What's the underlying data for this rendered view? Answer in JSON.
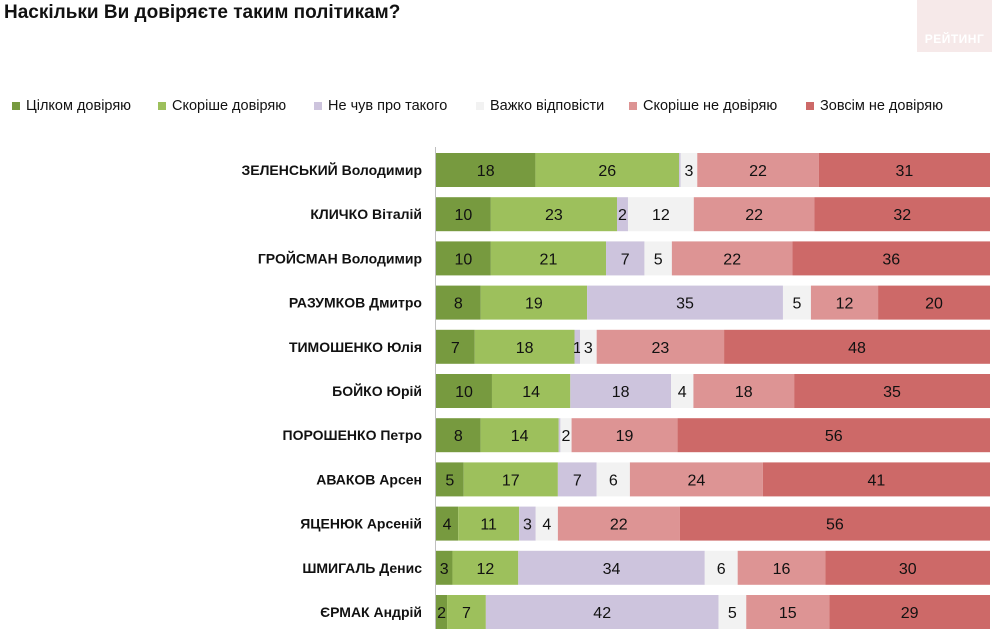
{
  "chart_data": {
    "type": "bar",
    "orientation": "horizontal",
    "stacked": "percent",
    "title": "Наскільки Ви довіряєте таким політикам?",
    "legend_position": "top",
    "xlim": [
      0,
      100
    ],
    "categories": [
      "ЗЕЛЕНСЬКИЙ Володимир",
      "КЛИЧКО Віталій",
      "ГРОЙСМАН Володимир",
      "РАЗУМКОВ Дмитро",
      "ТИМОШЕНКО Юлія",
      "БОЙКО Юрій",
      "ПОРОШЕНКО Петро",
      "АВАКОВ Арсен",
      "ЯЦЕНЮК Арсеній",
      "ШМИГАЛЬ Денис",
      "ЄРМАК Андрій"
    ],
    "series": [
      {
        "name": "Цілком довіряю",
        "color": "#779a3f",
        "values": [
          18,
          10,
          10,
          8,
          7,
          10,
          8,
          5,
          4,
          3,
          2
        ]
      },
      {
        "name": "Скоріше довіряю",
        "color": "#9dc05c",
        "values": [
          26,
          23,
          21,
          19,
          18,
          14,
          14,
          17,
          11,
          12,
          7
        ]
      },
      {
        "name": "Не чув про такого",
        "color": "#cdc4dd",
        "values": [
          0.3,
          2,
          7,
          35,
          1,
          18,
          0.3,
          7,
          3,
          34,
          42
        ]
      },
      {
        "name": "Важко відповісти",
        "color": "#f2f2f2",
        "values": [
          3,
          12,
          5,
          5,
          3,
          4,
          2,
          6,
          4,
          6,
          5
        ]
      },
      {
        "name": "Скоріше не довіряю",
        "color": "#dd9494",
        "values": [
          22,
          22,
          22,
          12,
          23,
          18,
          19,
          24,
          22,
          16,
          15
        ]
      },
      {
        "name": "Зовсім не довіряю",
        "color": "#cd6968",
        "values": [
          31,
          32,
          36,
          20,
          48,
          35,
          56,
          41,
          56,
          30,
          29
        ]
      }
    ],
    "data_labels": [
      [
        "18",
        "26",
        "",
        "3",
        "22",
        "31"
      ],
      [
        "10",
        "23",
        "2",
        "12",
        "22",
        "32"
      ],
      [
        "10",
        "21",
        "7",
        "5",
        "22",
        "36"
      ],
      [
        "8",
        "19",
        "35",
        "5",
        "12",
        "20"
      ],
      [
        "7",
        "18",
        "1",
        "3",
        "23",
        "48"
      ],
      [
        "10",
        "14",
        "18",
        "4",
        "18",
        "35"
      ],
      [
        "8",
        "14",
        "",
        "2",
        "19",
        "56"
      ],
      [
        "5",
        "17",
        "7",
        "6",
        "24",
        "41"
      ],
      [
        "4",
        "11",
        "3",
        "4",
        "22",
        "56"
      ],
      [
        "3",
        "12",
        "34",
        "6",
        "16",
        "30"
      ],
      [
        "2",
        "7",
        "42",
        "5",
        "15",
        "29"
      ]
    ]
  },
  "logo": {
    "text": "РЕЙТИНГ",
    "color": "#f6e9e9"
  }
}
